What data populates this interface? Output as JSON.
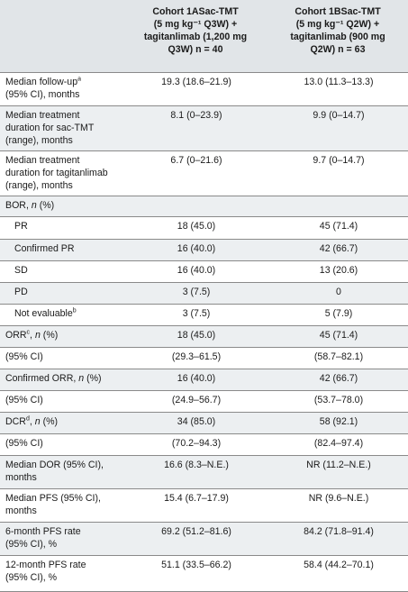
{
  "header": {
    "col1": "",
    "col2_lines": [
      "Cohort 1ASac-TMT",
      "(5 mg kg⁻¹ Q3W) +",
      "tagitanlimab (1,200 mg",
      "Q3W) n = 40"
    ],
    "col3_lines": [
      "Cohort 1BSac-TMT",
      "(5 mg kg⁻¹ Q2W) +",
      "tagitanlimab (900 mg",
      "Q2W) n = 63"
    ]
  },
  "rows": [
    {
      "label": "Median follow-up",
      "sup": "a",
      "label2": "(95% CI), months",
      "a": "19.3 (18.6–21.9)",
      "b": "13.0 (11.3–13.3)",
      "shade": false,
      "indent": false,
      "h": 37
    },
    {
      "label": "Median treatment",
      "sup": "",
      "label2": "duration for sac-TMT (range), months",
      "a": "8.1 (0–23.9)",
      "b": "9.9 (0–14.7)",
      "shade": true,
      "indent": false,
      "h": 50
    },
    {
      "label": "Median treatment",
      "sup": "",
      "label2": "duration for tagitanlimab (range), months",
      "a": "6.7 (0–21.6)",
      "b": "9.7 (0–14.7)",
      "shade": false,
      "indent": false,
      "h": 50
    },
    {
      "label": "BOR, n (%)",
      "sup": "",
      "label2": "",
      "a": "",
      "b": "",
      "shade": true,
      "indent": false,
      "h": 23
    },
    {
      "label": "PR",
      "sup": "",
      "label2": "",
      "a": "18 (45.0)",
      "b": "45 (71.4)",
      "shade": false,
      "indent": true,
      "h": 25
    },
    {
      "label": "Confirmed PR",
      "sup": "",
      "label2": "",
      "a": "16 (40.0)",
      "b": "42 (66.7)",
      "shade": true,
      "indent": true,
      "h": 24
    },
    {
      "label": "SD",
      "sup": "",
      "label2": "",
      "a": "16 (40.0)",
      "b": "13 (20.6)",
      "shade": false,
      "indent": true,
      "h": 24
    },
    {
      "label": "PD",
      "sup": "",
      "label2": "",
      "a": "3 (7.5)",
      "b": "0",
      "shade": true,
      "indent": true,
      "h": 24
    },
    {
      "label": "Not evaluable",
      "sup": "b",
      "label2": "",
      "a": "3 (7.5)",
      "b": "5 (7.9)",
      "shade": false,
      "indent": true,
      "h": 24
    },
    {
      "label": "ORR",
      "sup": "c",
      "label2": "",
      "labelSuffix": ", n (%)",
      "a": "18 (45.0)",
      "b": "45 (71.4)",
      "shade": true,
      "indent": false,
      "h": 24
    },
    {
      "label": "(95% CI)",
      "sup": "",
      "label2": "",
      "a": "(29.3–61.5)",
      "b": "(58.7–82.1)",
      "shade": false,
      "indent": false,
      "h": 24
    },
    {
      "label": "Confirmed ORR, n (%)",
      "sup": "",
      "label2": "",
      "a": "16 (40.0)",
      "b": "42 (66.7)",
      "shade": true,
      "indent": false,
      "h": 24
    },
    {
      "label": "(95% CI)",
      "sup": "",
      "label2": "",
      "a": "(24.9–56.7)",
      "b": "(53.7–78.0)",
      "shade": false,
      "indent": false,
      "h": 24
    },
    {
      "label": "DCR",
      "sup": "d",
      "label2": "",
      "labelSuffix": ", n (%)",
      "a": "34 (85.0)",
      "b": "58 (92.1)",
      "shade": true,
      "indent": false,
      "h": 24
    },
    {
      "label": "(95% CI)",
      "sup": "",
      "label2": "",
      "a": "(70.2–94.3)",
      "b": "(82.4–97.4)",
      "shade": false,
      "indent": false,
      "h": 24
    },
    {
      "label": "Median DOR (95% CI),",
      "sup": "",
      "label2": "months",
      "a": "16.6 (8.3–N.E.)",
      "b": "NR (11.2–N.E.)",
      "shade": true,
      "indent": false,
      "h": 37
    },
    {
      "label": "Median PFS (95% CI),",
      "sup": "",
      "label2": "months",
      "a": "15.4 (6.7–17.9)",
      "b": "NR (9.6–N.E.)",
      "shade": false,
      "indent": false,
      "h": 37
    },
    {
      "label": "6-month PFS rate",
      "sup": "",
      "label2": "(95% CI), %",
      "a": "69.2 (51.2–81.6)",
      "b": "84.2 (71.8–91.4)",
      "shade": true,
      "indent": false,
      "h": 37
    },
    {
      "label": "12-month PFS rate",
      "sup": "",
      "label2": "(95% CI), %",
      "a": "51.1 (33.5–66.2)",
      "b": "58.4 (44.2–70.1)",
      "shade": false,
      "indent": false,
      "h": 40
    }
  ]
}
